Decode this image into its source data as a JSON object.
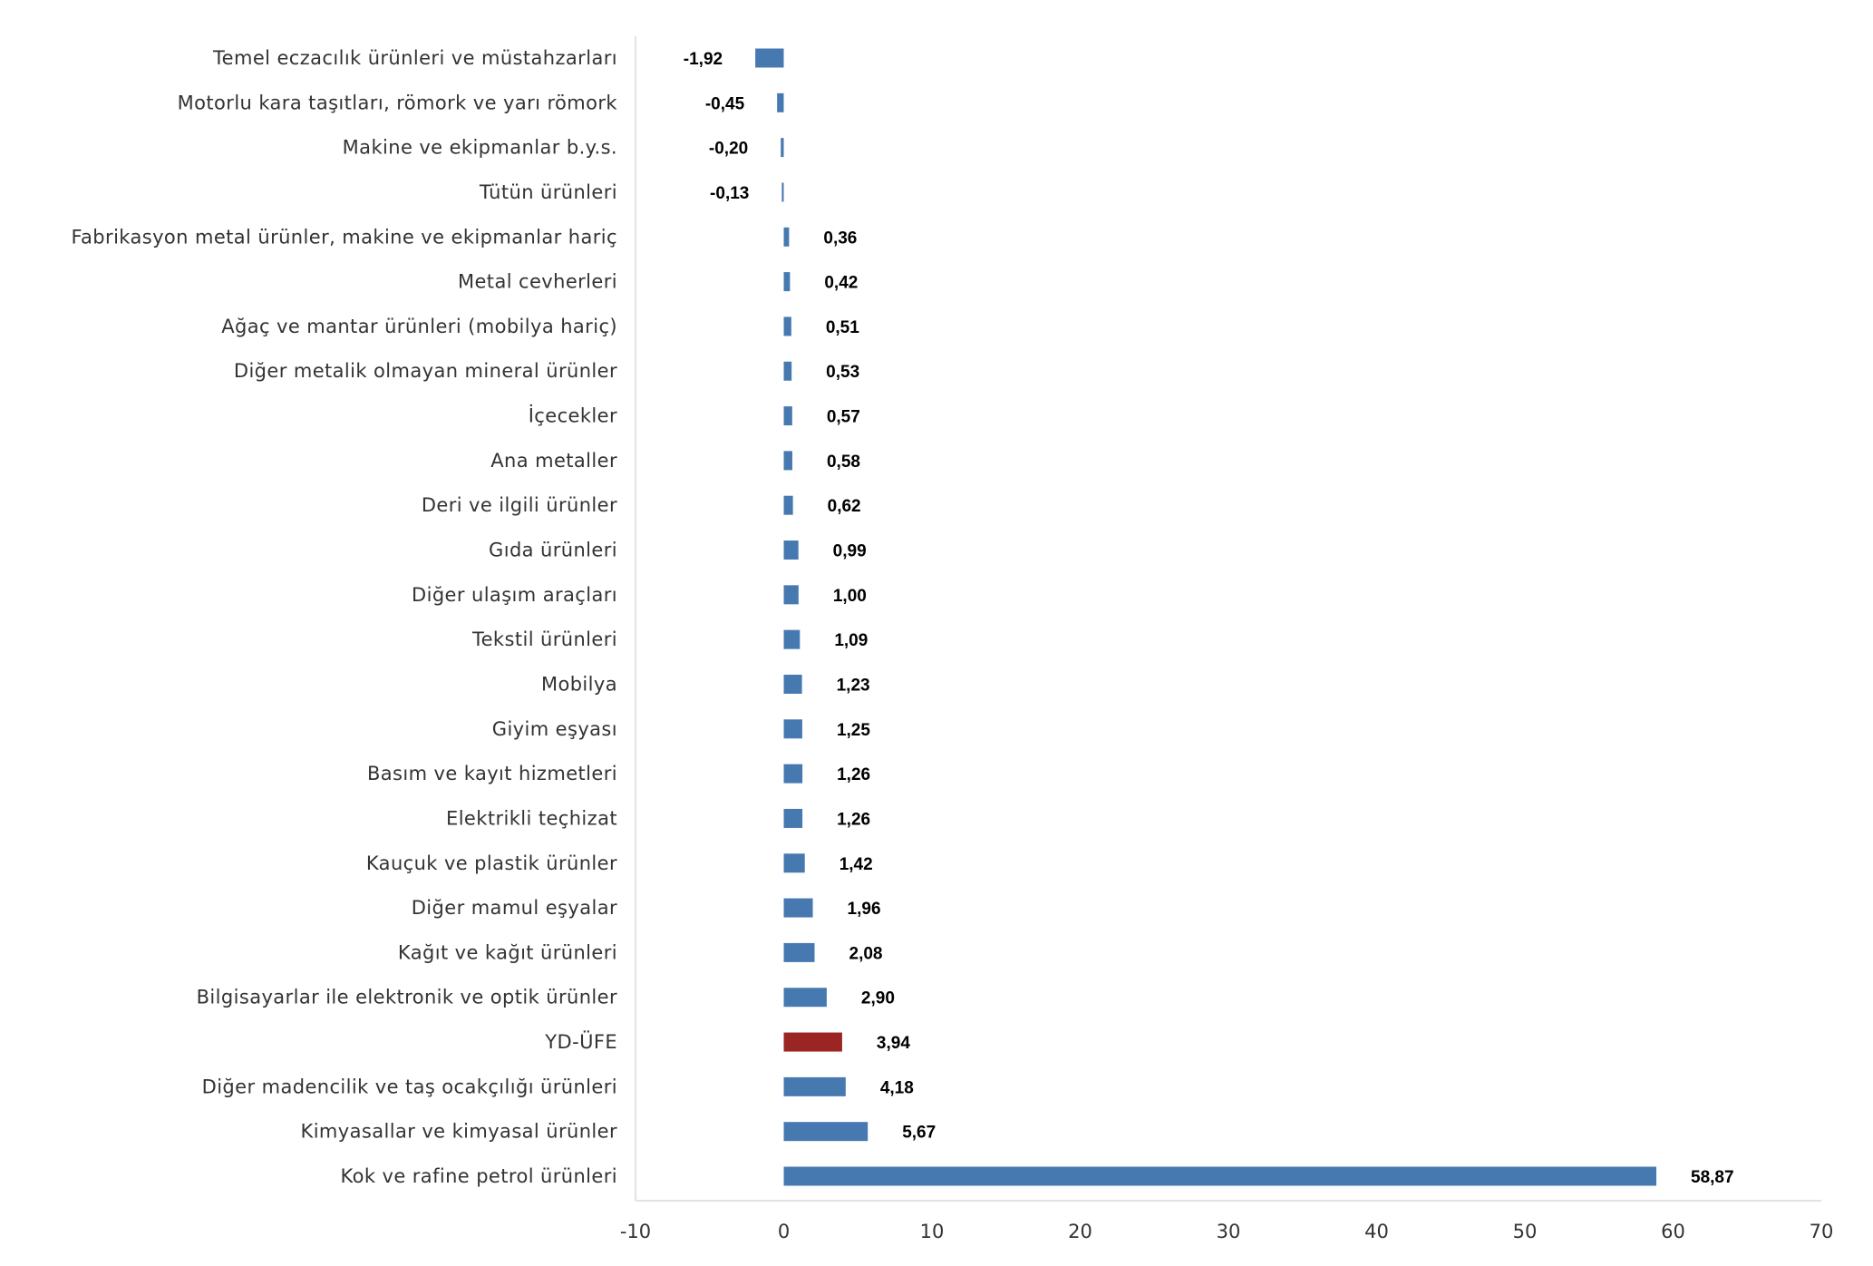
{
  "chart_data": {
    "type": "bar",
    "orientation": "horizontal",
    "title": "",
    "xlabel": "",
    "ylabel": "",
    "xlim": [
      -10,
      70
    ],
    "xticks": [
      -10,
      0,
      10,
      20,
      30,
      40,
      50,
      60,
      70
    ],
    "grid": false,
    "colors": {
      "default": "#4779B1",
      "highlight": "#9B2523"
    },
    "highlight_category": "YD-ÜFE",
    "categories": [
      "Temel eczacılık ürünleri ve müstahzarları",
      "Motorlu kara taşıtları, römork ve yarı römork",
      "Makine ve ekipmanlar b.y.s.",
      "Tütün ürünleri",
      "Fabrikasyon metal ürünler, makine ve ekipmanlar hariç",
      "Metal cevherleri",
      "Ağaç ve mantar ürünleri (mobilya hariç)",
      "Diğer metalik olmayan mineral ürünler",
      "İçecekler",
      "Ana metaller",
      "Deri ve ilgili ürünler",
      "Gıda ürünleri",
      "Diğer ulaşım araçları",
      "Tekstil ürünleri",
      "Mobilya",
      "Giyim eşyası",
      "Basım ve kayıt hizmetleri",
      "Elektrikli teçhizat",
      "Kauçuk ve plastik ürünler",
      "Diğer mamul eşyalar",
      "Kağıt ve kağıt ürünleri",
      "Bilgisayarlar ile elektronik ve optik ürünler",
      "YD-ÜFE",
      "Diğer madencilik ve taş ocakçılığı ürünleri",
      "Kimyasallar ve kimyasal ürünler",
      "Kok ve rafine petrol ürünleri"
    ],
    "values": [
      -1.92,
      -0.45,
      -0.2,
      -0.13,
      0.36,
      0.42,
      0.51,
      0.53,
      0.57,
      0.58,
      0.62,
      0.99,
      1.0,
      1.09,
      1.23,
      1.25,
      1.26,
      1.26,
      1.42,
      1.96,
      2.08,
      2.9,
      3.94,
      4.18,
      5.67,
      58.87
    ],
    "value_labels": [
      "-1,92",
      "-0,45",
      "-0,20",
      "-0,13",
      "0,36",
      "0,42",
      "0,51",
      "0,53",
      "0,57",
      "0,58",
      "0,62",
      "0,99",
      "1,00",
      "1,09",
      "1,23",
      "1,25",
      "1,26",
      "1,26",
      "1,42",
      "1,96",
      "2,08",
      "2,90",
      "3,94",
      "4,18",
      "5,67",
      "58,87"
    ]
  }
}
